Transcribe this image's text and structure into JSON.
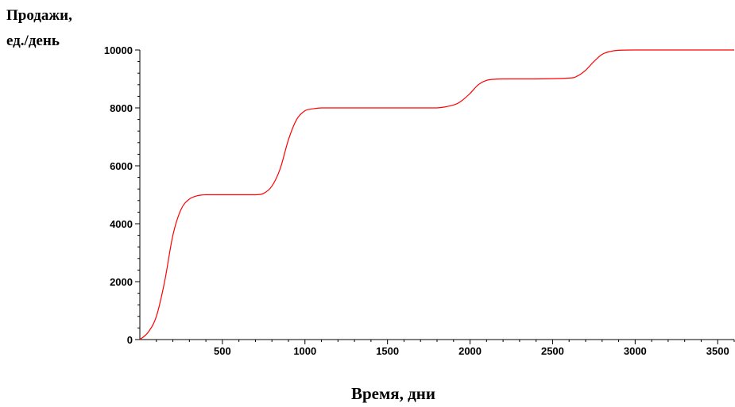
{
  "chart_data": {
    "type": "line",
    "title": "",
    "ylabel_lines": [
      "Продажи,",
      "ед./день"
    ],
    "xlabel": "Время, дни",
    "xlim": [
      0,
      3600
    ],
    "ylim": [
      0,
      10000
    ],
    "x_ticks": [
      500,
      1000,
      1500,
      2000,
      2500,
      3000,
      3500
    ],
    "y_ticks": [
      0,
      2000,
      4000,
      6000,
      8000,
      10000
    ],
    "x_tick_labels": [
      "500",
      "1000",
      "1500",
      "2000",
      "2500",
      "3000",
      "3500"
    ],
    "y_tick_labels": [
      "0",
      "2000",
      "4000",
      "6000",
      "8000",
      "10000"
    ],
    "grid": false,
    "line_color": "#ff0000",
    "series": [
      {
        "x": [
          0,
          50,
          100,
          150,
          200,
          250,
          300,
          350,
          400,
          450,
          500,
          600,
          700,
          750,
          800,
          850,
          900,
          950,
          1000,
          1050,
          1100,
          1200,
          1400,
          1600,
          1800,
          1900,
          1950,
          2000,
          2050,
          2100,
          2150,
          2200,
          2400,
          2600,
          2650,
          2700,
          2750,
          2800,
          2850,
          2900,
          3000,
          3200,
          3400,
          3600
        ],
        "y": [
          0,
          250,
          800,
          2000,
          3600,
          4500,
          4850,
          4970,
          5000,
          5000,
          5000,
          5000,
          5000,
          5050,
          5300,
          5900,
          6900,
          7600,
          7900,
          7970,
          8000,
          8000,
          8000,
          8000,
          8000,
          8100,
          8250,
          8500,
          8800,
          8950,
          8990,
          9000,
          9000,
          9030,
          9100,
          9300,
          9600,
          9850,
          9950,
          9990,
          10000,
          10000,
          10000,
          10000
        ]
      }
    ]
  }
}
